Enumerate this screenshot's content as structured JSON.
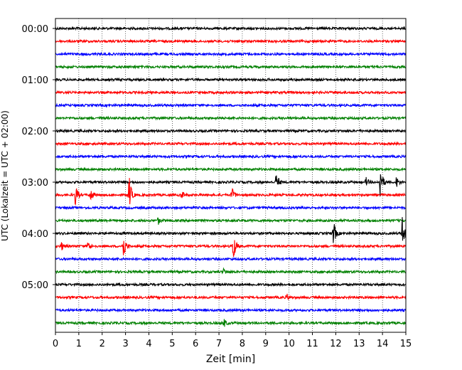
{
  "chart_data": {
    "type": "line",
    "title": "",
    "xlabel": "Zeit  [min]",
    "ylabel": "UTC (Lokalzeit = UTC + 02:00)",
    "xlim": [
      0,
      15
    ],
    "x_ticks": [
      "0",
      "1",
      "2",
      "3",
      "4",
      "5",
      "6",
      "7",
      "8",
      "9",
      "10",
      "11",
      "12",
      "13",
      "14",
      "15"
    ],
    "y_ticks": [
      "00:00",
      "01:00",
      "02:00",
      "03:00",
      "04:00",
      "05:00"
    ],
    "grid": "vertical dotted at each minute",
    "trace_interval_min": 15,
    "num_traces": 24,
    "trace_colors": [
      "#000000",
      "#ff0000",
      "#0000ff",
      "#008000"
    ],
    "events": [
      {
        "trace": 12,
        "t": 9.45,
        "amp": 1.0
      },
      {
        "trace": 12,
        "t": 13.9,
        "amp": 1.7
      },
      {
        "trace": 12,
        "t": 13.3,
        "amp": 0.4
      },
      {
        "trace": 12,
        "t": 14.6,
        "amp": 0.5
      },
      {
        "trace": 13,
        "t": 0.85,
        "amp": 1.1
      },
      {
        "trace": 13,
        "t": 1.5,
        "amp": 0.6
      },
      {
        "trace": 13,
        "t": 3.15,
        "amp": 1.8
      },
      {
        "trace": 13,
        "t": 5.4,
        "amp": 0.4
      },
      {
        "trace": 13,
        "t": 7.55,
        "amp": 0.7
      },
      {
        "trace": 15,
        "t": 4.4,
        "amp": 0.3
      },
      {
        "trace": 16,
        "t": 11.9,
        "amp": 1.2
      },
      {
        "trace": 16,
        "t": 14.85,
        "amp": 1.7
      },
      {
        "trace": 17,
        "t": 0.25,
        "amp": 0.4
      },
      {
        "trace": 17,
        "t": 1.4,
        "amp": 0.5
      },
      {
        "trace": 17,
        "t": 2.9,
        "amp": 1.3
      },
      {
        "trace": 17,
        "t": 7.6,
        "amp": 1.6
      },
      {
        "trace": 19,
        "t": 7.2,
        "amp": 0.3
      },
      {
        "trace": 21,
        "t": 9.9,
        "amp": 0.3
      },
      {
        "trace": 23,
        "t": 7.2,
        "amp": 0.4
      }
    ]
  }
}
